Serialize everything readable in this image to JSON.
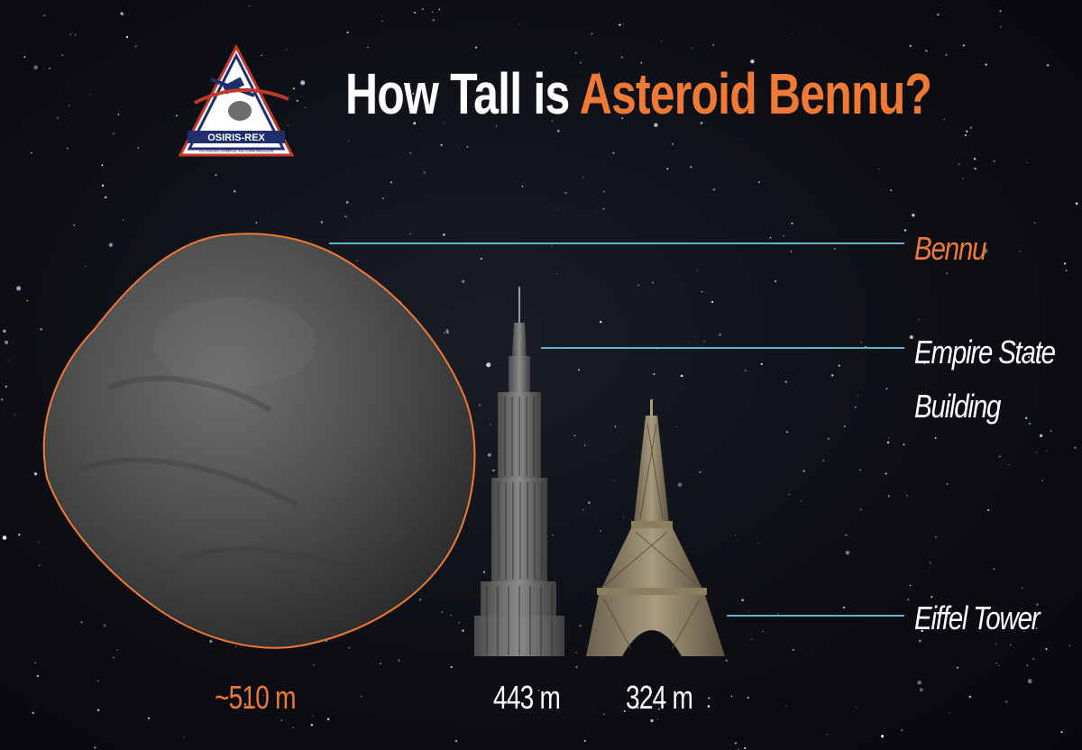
{
  "title": {
    "part1": "How Tall is",
    "part2": "Asteroid Bennu?"
  },
  "logo": {
    "text": "OSIRIS-REX",
    "subtitle": "ASTEROID SAMPLE RETURN MISSION"
  },
  "reference_lines": {
    "bennu": "Bennu",
    "empire_state_line1": "Empire State",
    "empire_state_line2": "Building",
    "eiffel": "Eiffel Tower"
  },
  "measurements": {
    "bennu": "~510 m",
    "empire_state": "443 m",
    "eiffel": "324 m"
  },
  "colors": {
    "accent": "#f07a35",
    "line": "#5fb6c7",
    "text": "#ffffff"
  }
}
